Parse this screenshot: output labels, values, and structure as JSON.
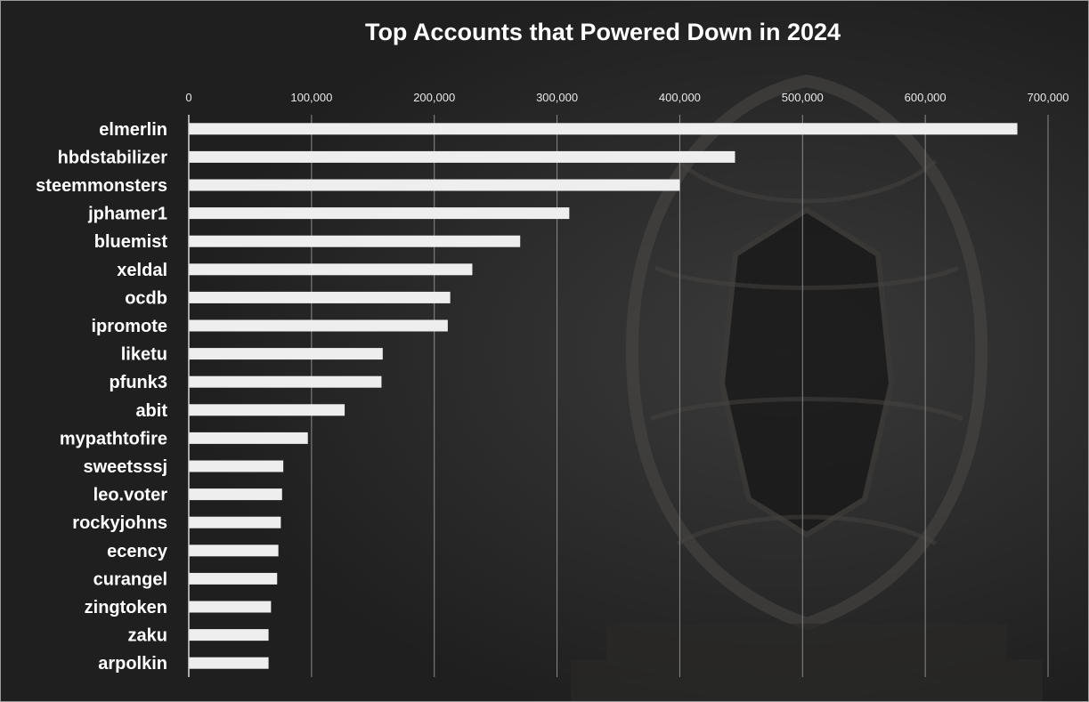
{
  "chart_data": {
    "type": "bar",
    "orientation": "horizontal",
    "title": "Top Accounts that Powered Down in 2024",
    "xlabel": "",
    "ylabel": "",
    "xlim": [
      0,
      700000
    ],
    "x_ticks": [
      "0",
      "100,000",
      "200,000",
      "300,000",
      "400,000",
      "500,000",
      "600,000",
      "700,000"
    ],
    "x_tick_values": [
      0,
      100000,
      200000,
      300000,
      400000,
      500000,
      600000,
      700000
    ],
    "x_axis_position": "top",
    "grid": true,
    "legend": "none",
    "categories": [
      "elmerlin",
      "hbdstabilizer",
      "steemmonsters",
      "jphamer1",
      "bluemist",
      "xeldal",
      "ocdb",
      "ipromote",
      "liketu",
      "pfunk3",
      "abit",
      "mypathtofire",
      "sweetsssj",
      "leo.voter",
      "rockyjohns",
      "ecency",
      "curangel",
      "zingtoken",
      "zaku",
      "arpolkin"
    ],
    "values": [
      675000,
      445000,
      400000,
      310000,
      270000,
      231000,
      213000,
      211000,
      158000,
      157000,
      127000,
      97000,
      77000,
      76000,
      75000,
      73000,
      72000,
      67000,
      65000,
      65000
    ],
    "colors": {
      "bar": "#eeeeee",
      "background": "#1f1f1f",
      "text": "#ffffff",
      "grid": "#8a8a8a"
    }
  }
}
